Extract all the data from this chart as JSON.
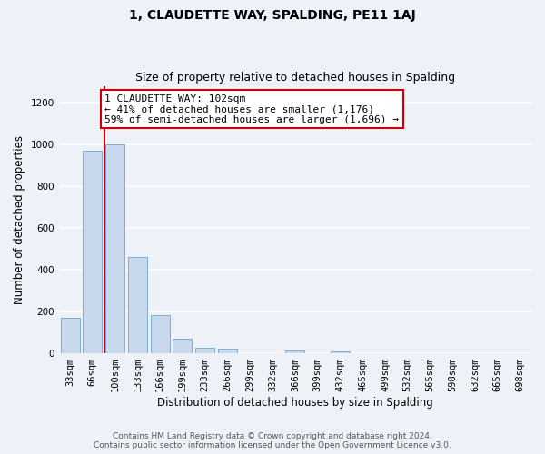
{
  "title": "1, CLAUDETTE WAY, SPALDING, PE11 1AJ",
  "subtitle": "Size of property relative to detached houses in Spalding",
  "xlabel": "Distribution of detached houses by size in Spalding",
  "ylabel": "Number of detached properties",
  "bin_labels": [
    "33sqm",
    "66sqm",
    "100sqm",
    "133sqm",
    "166sqm",
    "199sqm",
    "233sqm",
    "266sqm",
    "299sqm",
    "332sqm",
    "366sqm",
    "399sqm",
    "432sqm",
    "465sqm",
    "499sqm",
    "532sqm",
    "565sqm",
    "598sqm",
    "632sqm",
    "665sqm",
    "698sqm"
  ],
  "bin_values": [
    170,
    970,
    1000,
    460,
    185,
    70,
    25,
    20,
    0,
    0,
    15,
    0,
    10,
    0,
    0,
    0,
    0,
    0,
    0,
    0,
    0
  ],
  "bar_color": "#c8d9ee",
  "bar_edge_color": "#7aadd4",
  "property_bin_index": 2,
  "vline_color": "#cc0000",
  "annotation_text": "1 CLAUDETTE WAY: 102sqm\n← 41% of detached houses are smaller (1,176)\n59% of semi-detached houses are larger (1,696) →",
  "annotation_box_facecolor": "#ffffff",
  "annotation_box_edgecolor": "#cc0000",
  "ylim": [
    0,
    1280
  ],
  "yticks": [
    0,
    200,
    400,
    600,
    800,
    1000,
    1200
  ],
  "footer_text": "Contains HM Land Registry data © Crown copyright and database right 2024.\nContains public sector information licensed under the Open Government Licence v3.0.",
  "background_color": "#eef2f8",
  "grid_color": "#ffffff",
  "title_fontsize": 10,
  "subtitle_fontsize": 9,
  "axis_label_fontsize": 8.5,
  "tick_fontsize": 7.5,
  "annotation_fontsize": 8,
  "footer_fontsize": 6.5
}
